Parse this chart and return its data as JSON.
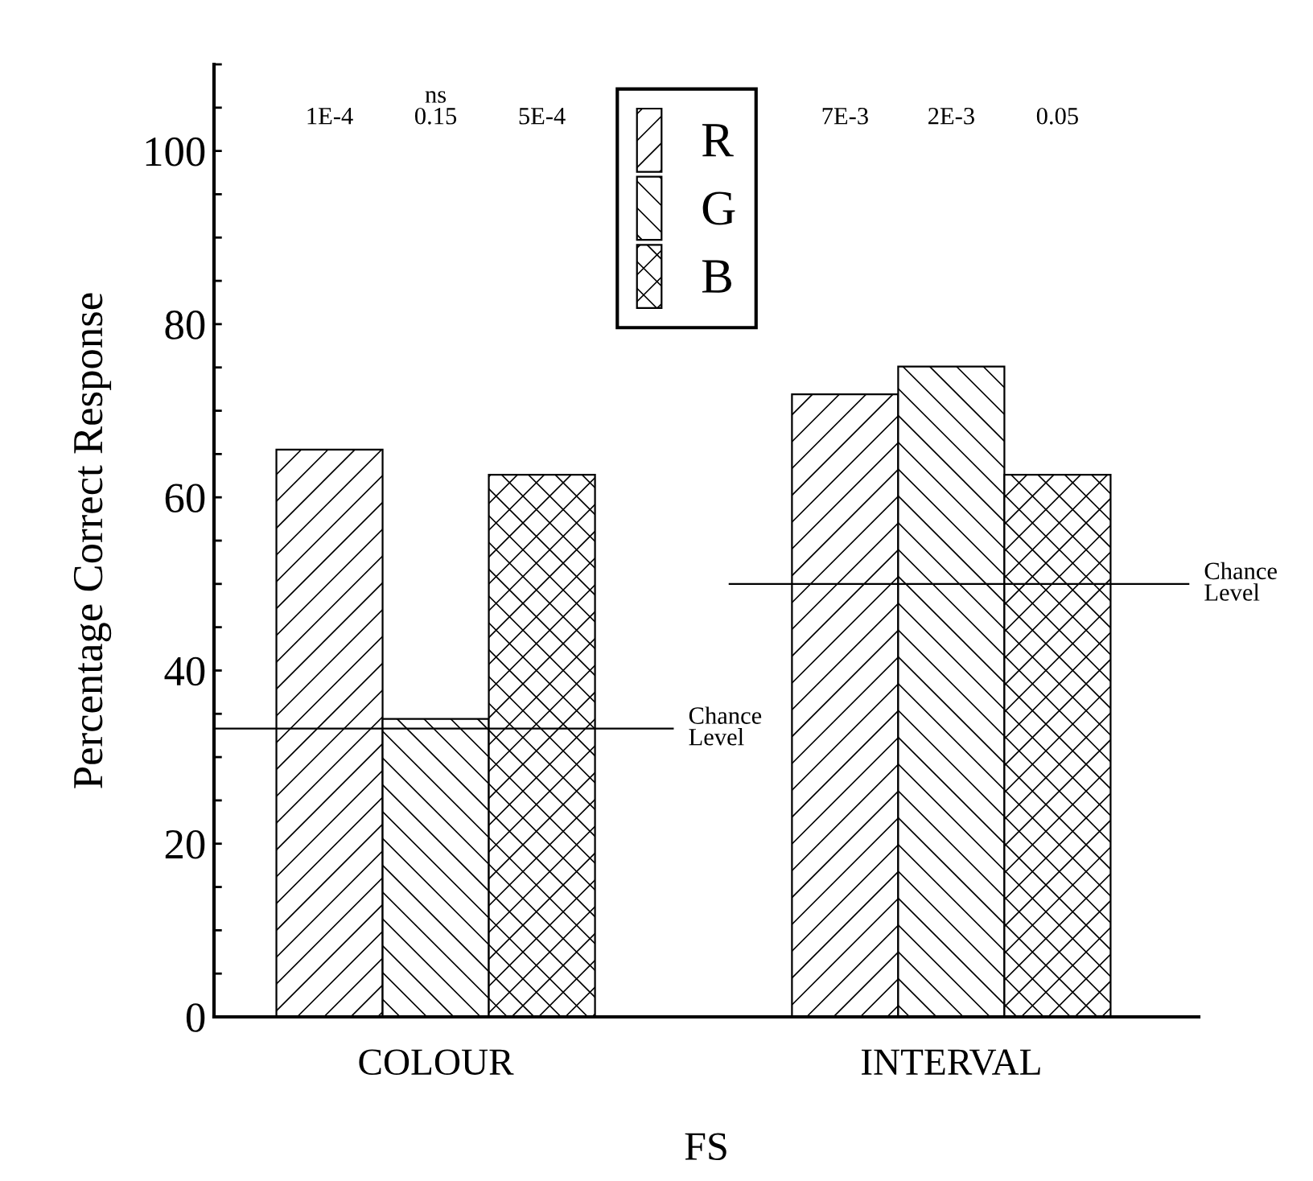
{
  "chart_data": {
    "type": "bar",
    "xlabel": "FS",
    "ylabel": "Percentage Correct Response",
    "categories": [
      "COLOUR",
      "INTERVAL"
    ],
    "series": [
      {
        "name": "R",
        "color": "#000000",
        "values": [
          65.5,
          71.9
        ]
      },
      {
        "name": "G",
        "color": "#000000",
        "values": [
          34.4,
          75.1
        ]
      },
      {
        "name": "B",
        "color": "#000000",
        "values": [
          62.6,
          62.6
        ]
      }
    ],
    "ylim": [
      0,
      110
    ],
    "yticks": [
      0,
      {
        "value": 5,
        "label": null
      },
      {
        "value": 10,
        "label": null
      },
      {
        "value": 15,
        "label": null
      },
      20,
      {
        "value": 25,
        "label": null
      },
      {
        "value": 30,
        "label": null
      },
      {
        "value": 35,
        "label": null
      },
      40,
      {
        "value": 45,
        "label": null
      },
      {
        "value": 50,
        "label": null
      },
      {
        "value": 55,
        "label": null
      },
      60,
      {
        "value": 65,
        "label": null
      },
      {
        "value": 70,
        "label": null
      },
      {
        "value": 75,
        "label": null
      },
      80,
      {
        "value": 85,
        "label": null
      },
      {
        "value": 90,
        "label": null
      },
      {
        "value": 95,
        "label": null
      },
      100,
      {
        "value": 105,
        "label": null
      },
      {
        "value": 110,
        "label": null
      }
    ],
    "ref_lines": [
      {
        "axis": "y",
        "value": 33.3,
        "label": "Chance\nLevel",
        "color": "#000000"
      },
      {
        "axis": "y",
        "value": 50,
        "label": "Chance\nLevel",
        "color": "#000000"
      }
    ],
    "annotations": [
      "1E-4",
      "ns\n0.15",
      "5E-4",
      "7E-3",
      "2E-3",
      "0.05"
    ],
    "legend": "top",
    "grid": false
  }
}
